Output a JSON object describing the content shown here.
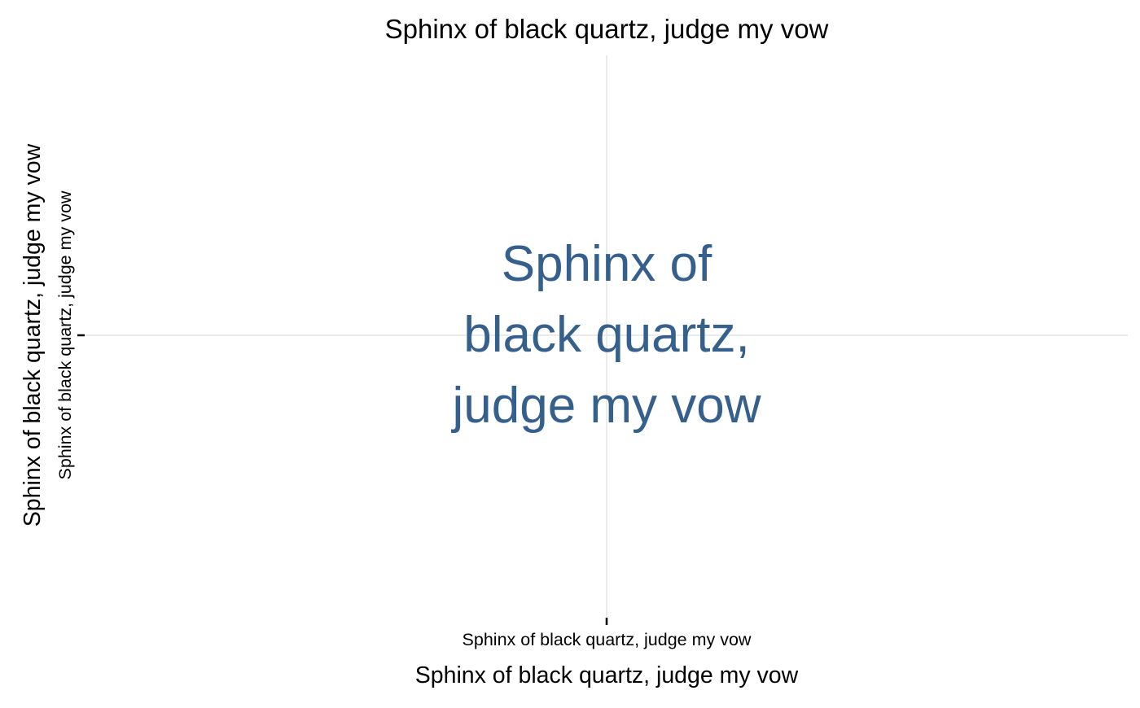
{
  "chart_data": {
    "type": "scatter",
    "title": "Sphinx of black quartz, judge my vow",
    "xlabel": "Sphinx of black quartz, judge my vow",
    "ylabel": "Sphinx of black quartz, judge my vow",
    "x_ticks": [
      "Sphinx of black quartz, judge my vow"
    ],
    "y_ticks": [
      "Sphinx of black quartz, judge my vow"
    ],
    "points": [
      {
        "x": "Sphinx of black quartz, judge my vow",
        "y": "Sphinx of black quartz, judge my vow",
        "label_lines": [
          "Sphinx of",
          "black quartz,",
          "judge my vow"
        ]
      }
    ],
    "grid": true,
    "legend": "none",
    "colors": {
      "label": "#355f8d",
      "grid": "#ebebeb",
      "text": "#000000",
      "tick": "#000000",
      "background": "#ffffff"
    }
  }
}
